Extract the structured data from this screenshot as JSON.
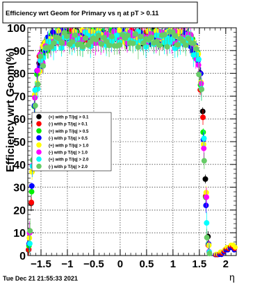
{
  "chart_data": {
    "type": "scatter",
    "title": "Efficiency wrt Geom for Primary vs   η at pT > 0.11",
    "xlabel": "η",
    "ylabel": "Efficiency wrt Geom(%)",
    "xlim": [
      -1.75,
      2.2
    ],
    "ylim": [
      0,
      100
    ],
    "x_ticks": [
      -1.5,
      -1,
      -0.5,
      0,
      0.5,
      1,
      1.5,
      2
    ],
    "x_tick_labels": [
      "−1.5",
      "−1",
      "−0.5",
      "0",
      "0.5",
      "1",
      "1.5",
      "2"
    ],
    "y_ticks": [
      0,
      10,
      20,
      30,
      40,
      50,
      60,
      70,
      80,
      90,
      100
    ],
    "y_tick_labels": [
      "0",
      "10",
      "20",
      "30",
      "40",
      "50",
      "60",
      "70",
      "80",
      "90",
      "100"
    ],
    "grid": true,
    "legend_position": "left-middle",
    "series": [
      {
        "name": "(+) with p T/|q| > 0.1",
        "color": "#000000"
      },
      {
        "name": "(-) with p T/|q| > 0.1",
        "color": "#ff0000"
      },
      {
        "name": "(+) with p T/|q| > 0.5",
        "color": "#00ee00"
      },
      {
        "name": "(-) with p T/|q| > 0.5",
        "color": "#0000ff"
      },
      {
        "name": "(+) with p T/|q| > 1.0",
        "color": "#ffff00"
      },
      {
        "name": "(-) with p T/|q| > 1.0",
        "color": "#ff00ff"
      },
      {
        "name": "(+) with p T/|q| > 2.0",
        "color": "#00ffff"
      },
      {
        "name": "(-) with p T/|q| > 2.0",
        "color": "#66cc66"
      }
    ],
    "curve": {
      "x": [
        -1.74,
        -1.7,
        -1.66,
        -1.62,
        -1.58,
        -1.54,
        -1.5,
        -1.45,
        -1.4,
        -1.3,
        -1.2,
        -1.0,
        -0.5,
        0.0,
        0.5,
        1.0,
        1.2,
        1.3,
        1.4,
        1.45,
        1.5,
        1.54,
        1.57,
        1.6,
        1.63,
        1.66,
        1.69,
        1.72
      ],
      "y": [
        1,
        12,
        40,
        68,
        78,
        82,
        86,
        90,
        93,
        95,
        96,
        96,
        96,
        96,
        96,
        96,
        96,
        95,
        92,
        88,
        82,
        72,
        58,
        42,
        22,
        8,
        1,
        0
      ],
      "spread": [
        1,
        4,
        5,
        5,
        5,
        5,
        5,
        4,
        4,
        3,
        3,
        3,
        3,
        3,
        3,
        3,
        3,
        3,
        4,
        4,
        5,
        6,
        7,
        7,
        6,
        4,
        1,
        0
      ]
    },
    "tail": {
      "x": [
        1.8,
        1.84,
        1.88,
        1.92,
        1.96,
        2.0,
        2.04,
        2.08,
        2.12,
        2.16
      ],
      "y": [
        0,
        0,
        1,
        1,
        2,
        3,
        3,
        4,
        4,
        3
      ]
    }
  },
  "footer": {
    "timestamp": "Tue Dec 21 21:55:33 2021"
  }
}
